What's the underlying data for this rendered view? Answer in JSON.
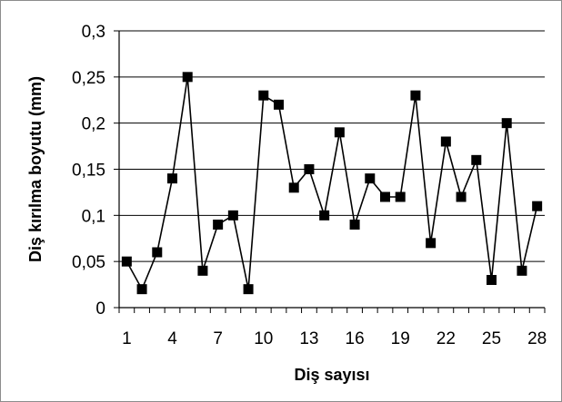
{
  "chart_data": {
    "type": "line",
    "title": "",
    "xlabel": "Diş sayısı",
    "ylabel": "Diş kırılma boyutu (mm)",
    "x": [
      1,
      2,
      3,
      4,
      5,
      6,
      7,
      8,
      9,
      10,
      11,
      12,
      13,
      14,
      15,
      16,
      17,
      18,
      19,
      20,
      21,
      22,
      23,
      24,
      25,
      26,
      27,
      28
    ],
    "x_tick_labels": [
      "1",
      "4",
      "7",
      "10",
      "13",
      "16",
      "19",
      "22",
      "25",
      "28"
    ],
    "x_tick_positions": [
      1,
      4,
      7,
      10,
      13,
      16,
      19,
      22,
      25,
      28
    ],
    "y_tick_labels": [
      "0",
      "0,05",
      "0,1",
      "0,15",
      "0,2",
      "0,25",
      "0,3"
    ],
    "ylim": [
      0,
      0.3
    ],
    "grid": "horizontal",
    "legend": "none",
    "series": [
      {
        "values": [
          0.05,
          0.02,
          0.06,
          0.14,
          0.25,
          0.04,
          0.09,
          0.1,
          0.02,
          0.23,
          0.22,
          0.13,
          0.15,
          0.1,
          0.19,
          0.09,
          0.14,
          0.12,
          0.12,
          0.23,
          0.07,
          0.18,
          0.12,
          0.16,
          0.03,
          0.2,
          0.04,
          0.11
        ],
        "color": "#000000",
        "marker": "square"
      }
    ]
  }
}
